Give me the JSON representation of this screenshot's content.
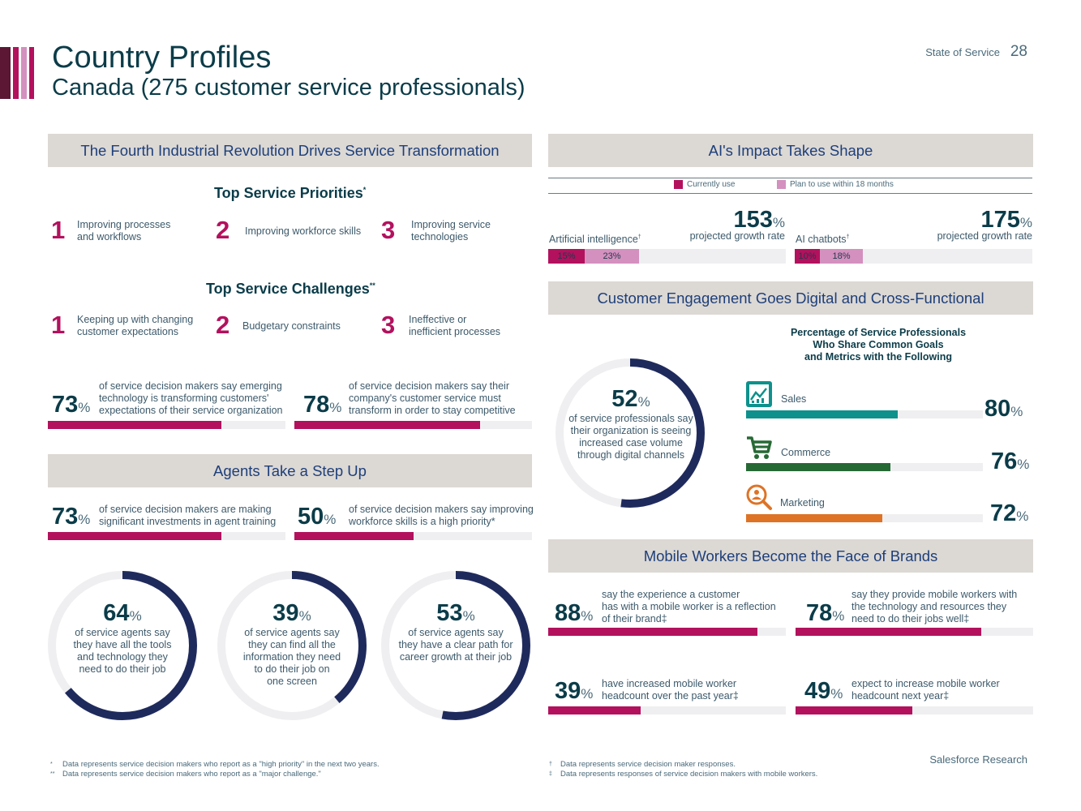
{
  "header": {
    "title": "Country Profiles",
    "subtitle": "Canada (275 customer service professionals)",
    "report": "State of Service",
    "page": "28"
  },
  "colors": {
    "magenta": "#b3115e",
    "navy": "#1f2a5c",
    "teal": "#0e918c",
    "green": "#276935",
    "orange": "#de7326",
    "pink": "#d490bf"
  },
  "fourth": {
    "heading": "The Fourth Industrial Revolution Drives Service Transformation",
    "priorities_title": "Top Service Priorities",
    "priorities_mark": "*",
    "priorities": [
      {
        "rank": "1",
        "label": "Improving processes\nand workflows"
      },
      {
        "rank": "2",
        "label": "Improving workforce skills"
      },
      {
        "rank": "3",
        "label": "Improving service\ntechnologies"
      }
    ],
    "challenges_title": "Top Service Challenges",
    "challenges_mark": "**",
    "challenges": [
      {
        "rank": "1",
        "label": "Keeping up with changing\ncustomer expectations"
      },
      {
        "rank": "2",
        "label": "Budgetary constraints"
      },
      {
        "rank": "3",
        "label": "Ineffective or\ninefficient processes"
      }
    ],
    "stats": [
      {
        "value": "73",
        "unit": "%",
        "text": "of service decision makers say emerging\ntechnology is transforming customers'\nexpectations of their service organization",
        "fraction": 0.73
      },
      {
        "value": "78",
        "unit": "%",
        "text": "of service decision makers say their\ncompany's customer service must\ntransform in order to stay competitive",
        "fraction": 0.78
      }
    ]
  },
  "agents": {
    "heading": "Agents Take a Step Up",
    "stats": [
      {
        "value": "73",
        "unit": "%",
        "text": "of service decision makers are making\nsignificant investments in agent training",
        "fraction": 0.73
      },
      {
        "value": "50",
        "unit": "%",
        "text": "of service decision makers say improving\nworkforce skills is a high priority*",
        "fraction": 0.5
      }
    ],
    "donuts": [
      {
        "value": "64",
        "unit": "%",
        "text": "of service agents say\nthey have all the tools\nand technology they\nneed to do their job",
        "fraction": 0.64
      },
      {
        "value": "39",
        "unit": "%",
        "text": "of service agents say\nthey can find all the\ninformation they need\nto do their job on\none screen",
        "fraction": 0.39
      },
      {
        "value": "53",
        "unit": "%",
        "text": "of service agents say\nthey have a clear path for\ncareer growth at their job",
        "fraction": 0.53
      }
    ]
  },
  "ai": {
    "heading": "AI's Impact Takes Shape",
    "legend": [
      "Currently use",
      "Plan to use within 18 months"
    ],
    "items": [
      {
        "label": "Artificial intelligence",
        "mark": "†",
        "growth": "153",
        "unit": "%",
        "growth_label": "projected growth rate",
        "current": "15%",
        "plan": "23%",
        "current_value": 15,
        "plan_value": 23
      },
      {
        "label": "AI chatbots",
        "mark": "†",
        "growth": "175",
        "unit": "%",
        "growth_label": "projected growth rate",
        "current": "10%",
        "plan": "18%",
        "current_value": 10,
        "plan_value": 18
      }
    ]
  },
  "engagement": {
    "heading": "Customer Engagement Goes Digital and Cross-Functional",
    "donut": {
      "value": "52",
      "unit": "%",
      "text": "of service professionals say\ntheir organization is seeing\nincreased case volume\nthrough digital channels",
      "fraction": 0.52
    },
    "chart_title": "Percentage of Service Professionals\nWho Share Common Goals\nand Metrics with the Following",
    "items": [
      {
        "name": "Sales",
        "value": "80",
        "unit": "%",
        "fraction": 0.8,
        "icon": "chart-icon",
        "color": "#0e918c"
      },
      {
        "name": "Commerce",
        "value": "76",
        "unit": "%",
        "fraction": 0.76,
        "icon": "cart-icon",
        "color": "#276935"
      },
      {
        "name": "Marketing",
        "value": "72",
        "unit": "%",
        "fraction": 0.72,
        "icon": "magnifier-people-icon",
        "color": "#de7326"
      }
    ]
  },
  "mobile": {
    "heading": "Mobile Workers Become the Face of Brands",
    "stats": [
      {
        "value": "88",
        "unit": "%",
        "text": "say the experience a customer\nhas with a mobile worker is a reflection\nof their brand‡",
        "fraction": 0.88
      },
      {
        "value": "78",
        "unit": "%",
        "text": "say they provide mobile workers with\nthe technology and resources they\nneed to do their jobs well‡",
        "fraction": 0.78
      },
      {
        "value": "39",
        "unit": "%",
        "text": "have increased mobile worker\nheadcount over the past year‡",
        "fraction": 0.39
      },
      {
        "value": "49",
        "unit": "%",
        "text": "expect to increase mobile worker\nheadcount next year‡",
        "fraction": 0.49
      }
    ]
  },
  "footnotes": {
    "left": [
      {
        "mark": "*",
        "text": "Data represents service decision makers who report as a \"high priority\" in the next two years."
      },
      {
        "mark": "**",
        "text": "Data represents service decision makers who report as a \"major challenge.\""
      }
    ],
    "right": [
      {
        "mark": "†",
        "text": "Data represents service decision maker responses."
      },
      {
        "mark": "‡",
        "text": "Data represents responses of service decision makers with mobile workers."
      }
    ]
  },
  "brand": "Salesforce Research"
}
